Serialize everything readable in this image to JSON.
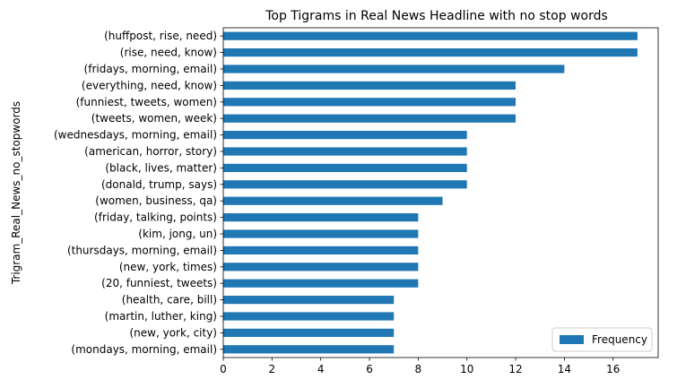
{
  "chart_data": {
    "type": "bar",
    "orientation": "horizontal",
    "title": "Top Tigrams in Real News Headline with no stop words",
    "xlabel": "",
    "ylabel": "Trigram_Real_News_no_stopwords",
    "categories": [
      "(huffpost, rise, need)",
      "(rise, need, know)",
      "(fridays, morning, email)",
      "(everything, need, know)",
      "(funniest, tweets, women)",
      "(tweets, women, week)",
      "(wednesdays, morning, email)",
      "(american, horror, story)",
      "(black, lives, matter)",
      "(donald, trump, says)",
      "(women, business, qa)",
      "(friday, talking, points)",
      "(kim, jong, un)",
      "(thursdays, morning, email)",
      "(new, york, times)",
      "(20, funniest, tweets)",
      "(health, care, bill)",
      "(martin, luther, king)",
      "(new, york, city)",
      "(mondays, morning, email)"
    ],
    "series": [
      {
        "name": "Frequency",
        "values": [
          17,
          17,
          14,
          12,
          12,
          12,
          10,
          10,
          10,
          10,
          9,
          8,
          8,
          8,
          8,
          8,
          7,
          7,
          7,
          7
        ],
        "color": "#1f77b4"
      }
    ],
    "xlim": [
      0,
      17.85
    ],
    "xticks": [
      0,
      2,
      4,
      6,
      8,
      10,
      12,
      14,
      16
    ],
    "grid": false,
    "legend_position": "bottom-right"
  }
}
